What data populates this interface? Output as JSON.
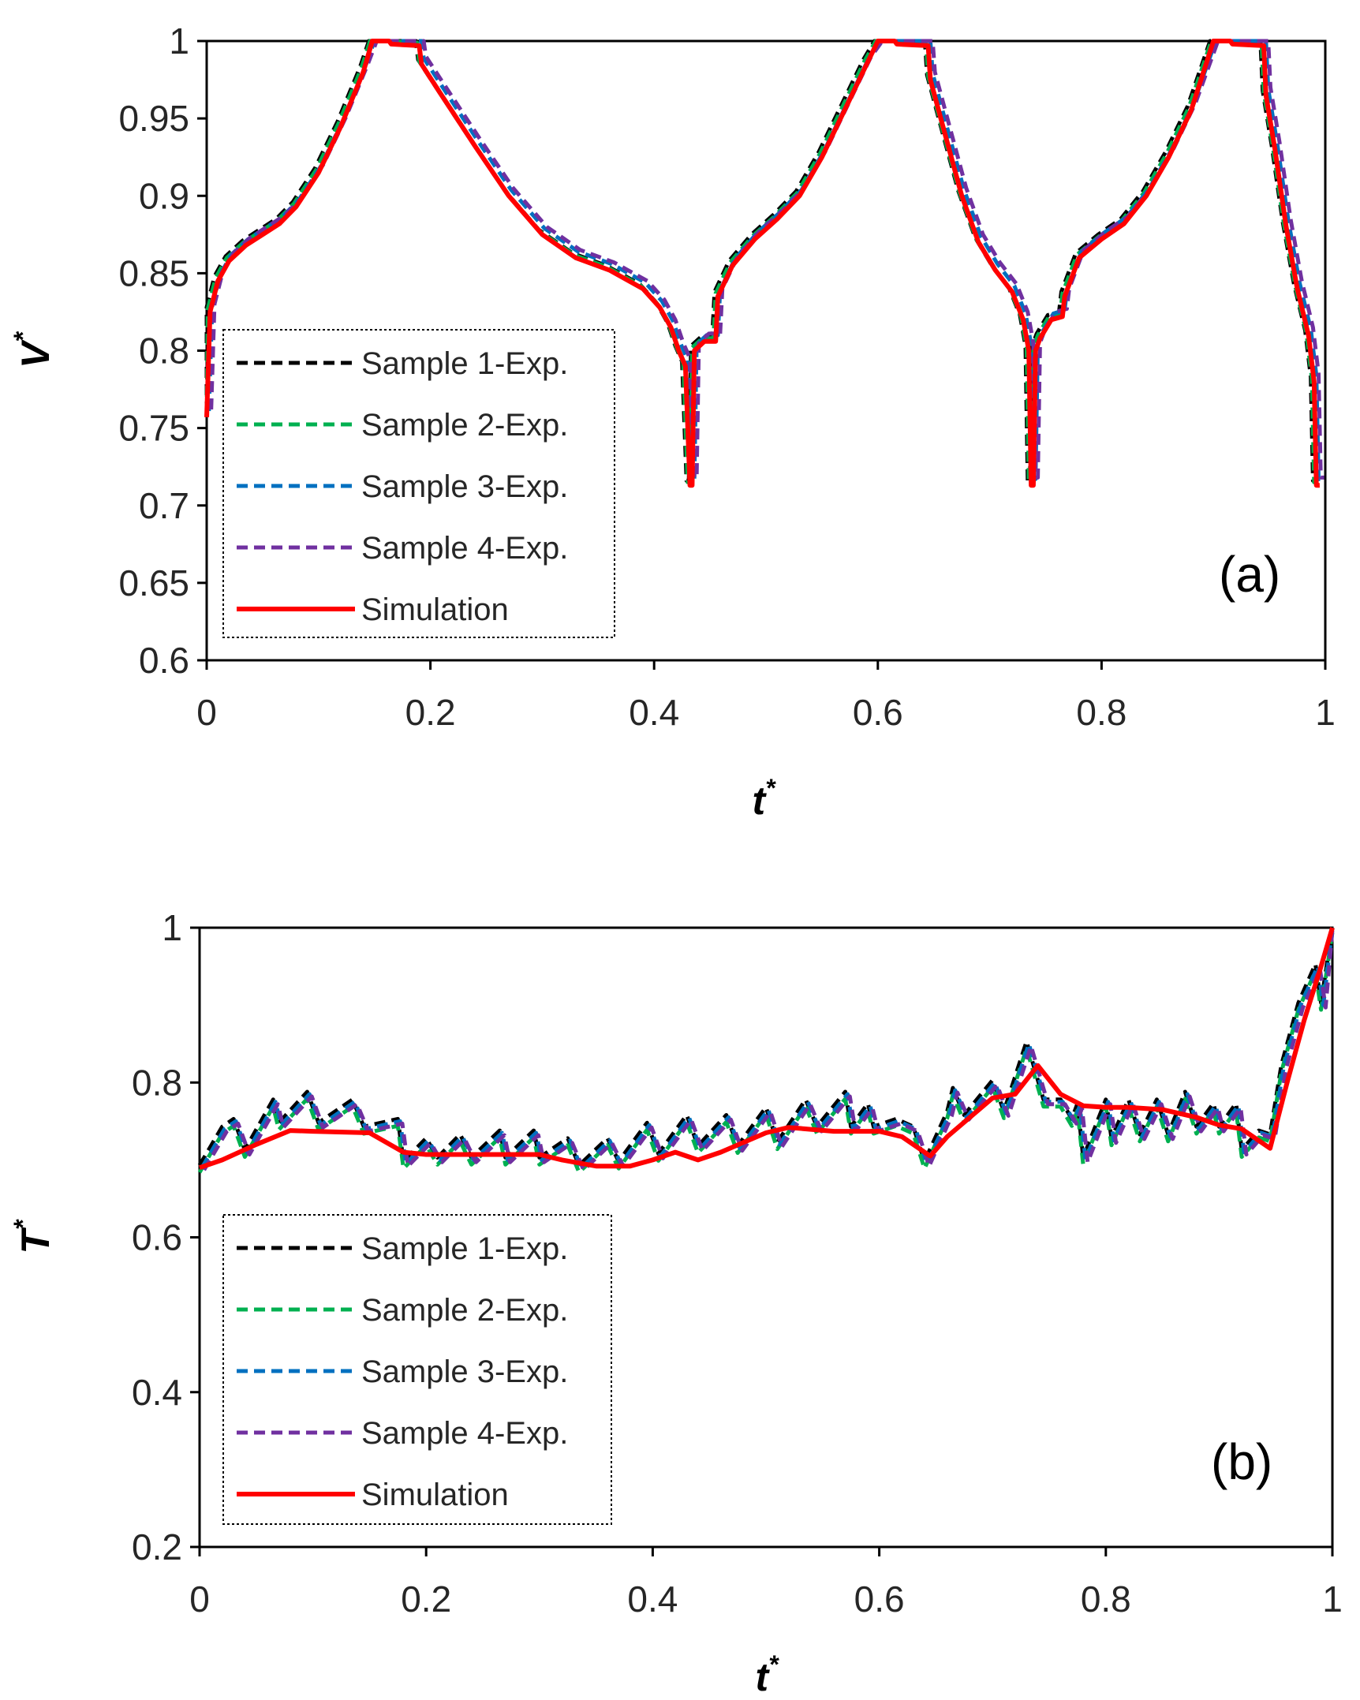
{
  "colors": {
    "sample1": "#000000",
    "sample2": "#00b050",
    "sample3": "#0070c0",
    "sample4": "#7030a0",
    "simulation": "#ff0000",
    "frame": "#000000"
  },
  "legend": {
    "entries": [
      {
        "label": "Sample 1-Exp.",
        "style": "dashed",
        "color": "#000000"
      },
      {
        "label": "Sample 2-Exp.",
        "style": "dashed",
        "color": "#00b050"
      },
      {
        "label": "Sample 3-Exp.",
        "style": "dashed",
        "color": "#0070c0"
      },
      {
        "label": "Sample 4-Exp.",
        "style": "dashed",
        "color": "#7030a0"
      },
      {
        "label": "Simulation",
        "style": "solid",
        "color": "#ff0000"
      }
    ]
  },
  "chart_data": [
    {
      "type": "line",
      "panel_label": "(a)",
      "xlabel": "t",
      "xlabel_sup": "*",
      "ylabel": "V",
      "ylabel_sup": "*",
      "xlim": [
        0,
        1
      ],
      "ylim": [
        0.6,
        1
      ],
      "xticks": [
        0,
        0.2,
        0.4,
        0.6,
        0.8,
        1
      ],
      "xtick_labels": [
        "0",
        "0.2",
        "0.4",
        "0.6",
        "0.8",
        "1"
      ],
      "yticks": [
        0.6,
        0.65,
        0.7,
        0.75,
        0.8,
        0.85,
        0.9,
        0.95,
        1
      ],
      "ytick_labels": [
        "0.6",
        "0.65",
        "0.7",
        "0.75",
        "0.8",
        "0.85",
        "0.9",
        "0.95",
        "1"
      ],
      "legend_position": "bottom-left",
      "series": [
        {
          "name": "Sample 1-Exp.",
          "style": "dashed",
          "color": "#000000",
          "dx": -0.003,
          "dy": 0.003
        },
        {
          "name": "Sample 2-Exp.",
          "style": "dashed",
          "color": "#00b050",
          "dx": -0.002,
          "dy": 0.002
        },
        {
          "name": "Sample 3-Exp.",
          "style": "dashed",
          "color": "#0070c0",
          "dx": 0.002,
          "dy": 0.004
        },
        {
          "name": "Sample 4-Exp.",
          "style": "dashed",
          "color": "#7030a0",
          "dx": 0.004,
          "dy": 0.005
        },
        {
          "name": "Simulation",
          "style": "solid",
          "color": "#ff0000",
          "dx": 0,
          "dy": 0
        }
      ],
      "base_curve": [
        [
          0.0,
          0.757
        ],
        [
          0.003,
          0.825
        ],
        [
          0.01,
          0.845
        ],
        [
          0.02,
          0.858
        ],
        [
          0.035,
          0.868
        ],
        [
          0.05,
          0.875
        ],
        [
          0.065,
          0.882
        ],
        [
          0.08,
          0.893
        ],
        [
          0.1,
          0.915
        ],
        [
          0.12,
          0.945
        ],
        [
          0.14,
          0.98
        ],
        [
          0.148,
          1.0
        ],
        [
          0.163,
          1.0
        ],
        [
          0.165,
          0.998
        ],
        [
          0.19,
          0.997
        ],
        [
          0.192,
          0.985
        ],
        [
          0.21,
          0.965
        ],
        [
          0.24,
          0.932
        ],
        [
          0.27,
          0.9
        ],
        [
          0.3,
          0.875
        ],
        [
          0.33,
          0.86
        ],
        [
          0.36,
          0.852
        ],
        [
          0.39,
          0.84
        ],
        [
          0.405,
          0.828
        ],
        [
          0.415,
          0.815
        ],
        [
          0.422,
          0.8
        ],
        [
          0.428,
          0.79
        ],
        [
          0.432,
          0.713
        ],
        [
          0.434,
          0.713
        ],
        [
          0.436,
          0.8
        ],
        [
          0.445,
          0.806
        ],
        [
          0.455,
          0.806
        ],
        [
          0.457,
          0.835
        ],
        [
          0.47,
          0.855
        ],
        [
          0.49,
          0.872
        ],
        [
          0.51,
          0.885
        ],
        [
          0.53,
          0.9
        ],
        [
          0.55,
          0.925
        ],
        [
          0.57,
          0.955
        ],
        [
          0.59,
          0.985
        ],
        [
          0.6,
          1.0
        ],
        [
          0.615,
          1.0
        ],
        [
          0.617,
          0.998
        ],
        [
          0.645,
          0.997
        ],
        [
          0.647,
          0.975
        ],
        [
          0.66,
          0.94
        ],
        [
          0.675,
          0.9
        ],
        [
          0.69,
          0.87
        ],
        [
          0.705,
          0.852
        ],
        [
          0.72,
          0.838
        ],
        [
          0.73,
          0.82
        ],
        [
          0.735,
          0.8
        ],
        [
          0.737,
          0.713
        ],
        [
          0.739,
          0.713
        ],
        [
          0.741,
          0.8
        ],
        [
          0.745,
          0.808
        ],
        [
          0.755,
          0.82
        ],
        [
          0.765,
          0.822
        ],
        [
          0.767,
          0.835
        ],
        [
          0.78,
          0.86
        ],
        [
          0.8,
          0.872
        ],
        [
          0.82,
          0.882
        ],
        [
          0.84,
          0.9
        ],
        [
          0.86,
          0.925
        ],
        [
          0.88,
          0.955
        ],
        [
          0.9,
          1.0
        ],
        [
          0.915,
          1.0
        ],
        [
          0.917,
          0.998
        ],
        [
          0.945,
          0.997
        ],
        [
          0.947,
          0.965
        ],
        [
          0.955,
          0.93
        ],
        [
          0.965,
          0.88
        ],
        [
          0.975,
          0.84
        ],
        [
          0.985,
          0.81
        ],
        [
          0.99,
          0.78
        ],
        [
          0.992,
          0.713
        ],
        [
          0.995,
          0.713
        ]
      ]
    },
    {
      "type": "line",
      "panel_label": "(b)",
      "xlabel": "t",
      "xlabel_sup": "*",
      "ylabel": "T",
      "ylabel_sup": "*",
      "xlim": [
        0,
        1
      ],
      "ylim": [
        0.2,
        1
      ],
      "xticks": [
        0,
        0.2,
        0.4,
        0.6,
        0.8,
        1
      ],
      "xtick_labels": [
        "0",
        "0.2",
        "0.4",
        "0.6",
        "0.8",
        "1"
      ],
      "yticks": [
        0.2,
        0.4,
        0.6,
        0.8,
        1
      ],
      "ytick_labels": [
        "0.2",
        "0.4",
        "0.6",
        "0.8",
        "1"
      ],
      "legend_position": "bottom-left",
      "experimental_curve": [
        [
          0.0,
          0.69
        ],
        [
          0.02,
          0.74
        ],
        [
          0.03,
          0.75
        ],
        [
          0.04,
          0.71
        ],
        [
          0.065,
          0.775
        ],
        [
          0.07,
          0.745
        ],
        [
          0.095,
          0.785
        ],
        [
          0.105,
          0.745
        ],
        [
          0.135,
          0.775
        ],
        [
          0.145,
          0.74
        ],
        [
          0.175,
          0.75
        ],
        [
          0.18,
          0.695
        ],
        [
          0.2,
          0.725
        ],
        [
          0.21,
          0.7
        ],
        [
          0.23,
          0.73
        ],
        [
          0.24,
          0.7
        ],
        [
          0.265,
          0.735
        ],
        [
          0.27,
          0.7
        ],
        [
          0.295,
          0.735
        ],
        [
          0.3,
          0.7
        ],
        [
          0.325,
          0.725
        ],
        [
          0.335,
          0.69
        ],
        [
          0.36,
          0.725
        ],
        [
          0.37,
          0.695
        ],
        [
          0.395,
          0.745
        ],
        [
          0.405,
          0.705
        ],
        [
          0.43,
          0.755
        ],
        [
          0.44,
          0.715
        ],
        [
          0.465,
          0.755
        ],
        [
          0.475,
          0.715
        ],
        [
          0.5,
          0.765
        ],
        [
          0.51,
          0.72
        ],
        [
          0.535,
          0.775
        ],
        [
          0.545,
          0.74
        ],
        [
          0.57,
          0.785
        ],
        [
          0.575,
          0.74
        ],
        [
          0.59,
          0.77
        ],
        [
          0.595,
          0.74
        ],
        [
          0.615,
          0.75
        ],
        [
          0.63,
          0.74
        ],
        [
          0.64,
          0.695
        ],
        [
          0.66,
          0.76
        ],
        [
          0.665,
          0.79
        ],
        [
          0.675,
          0.755
        ],
        [
          0.7,
          0.8
        ],
        [
          0.71,
          0.76
        ],
        [
          0.73,
          0.85
        ],
        [
          0.745,
          0.775
        ],
        [
          0.76,
          0.775
        ],
        [
          0.77,
          0.75
        ],
        [
          0.775,
          0.77
        ],
        [
          0.78,
          0.7
        ],
        [
          0.8,
          0.775
        ],
        [
          0.805,
          0.725
        ],
        [
          0.82,
          0.775
        ],
        [
          0.83,
          0.73
        ],
        [
          0.845,
          0.775
        ],
        [
          0.855,
          0.73
        ],
        [
          0.87,
          0.785
        ],
        [
          0.88,
          0.74
        ],
        [
          0.895,
          0.77
        ],
        [
          0.9,
          0.74
        ],
        [
          0.915,
          0.77
        ],
        [
          0.92,
          0.71
        ],
        [
          0.935,
          0.735
        ],
        [
          0.945,
          0.73
        ],
        [
          0.955,
          0.82
        ],
        [
          0.97,
          0.9
        ],
        [
          0.985,
          0.95
        ],
        [
          0.99,
          0.9
        ],
        [
          1.0,
          1.0
        ]
      ],
      "series": [
        {
          "name": "Sample 1-Exp.",
          "style": "dashed",
          "color": "#000000",
          "dx": 0,
          "dy": 0.003
        },
        {
          "name": "Sample 2-Exp.",
          "style": "dashed",
          "color": "#00b050",
          "dx": 0,
          "dy": -0.006
        },
        {
          "name": "Sample 3-Exp.",
          "style": "dashed",
          "color": "#0070c0",
          "dx": 0.002,
          "dy": 0.0
        },
        {
          "name": "Sample 4-Exp.",
          "style": "dashed",
          "color": "#7030a0",
          "dx": 0.004,
          "dy": -0.003
        },
        {
          "name": "Simulation",
          "style": "solid",
          "color": "#ff0000",
          "points": [
            [
              0.0,
              0.69
            ],
            [
              0.02,
              0.7
            ],
            [
              0.05,
              0.72
            ],
            [
              0.08,
              0.738
            ],
            [
              0.1,
              0.737
            ],
            [
              0.15,
              0.735
            ],
            [
              0.18,
              0.71
            ],
            [
              0.2,
              0.707
            ],
            [
              0.25,
              0.707
            ],
            [
              0.3,
              0.707
            ],
            [
              0.32,
              0.7
            ],
            [
              0.35,
              0.692
            ],
            [
              0.38,
              0.692
            ],
            [
              0.4,
              0.7
            ],
            [
              0.42,
              0.71
            ],
            [
              0.44,
              0.7
            ],
            [
              0.46,
              0.71
            ],
            [
              0.5,
              0.735
            ],
            [
              0.52,
              0.742
            ],
            [
              0.56,
              0.737
            ],
            [
              0.6,
              0.737
            ],
            [
              0.62,
              0.73
            ],
            [
              0.645,
              0.705
            ],
            [
              0.66,
              0.73
            ],
            [
              0.7,
              0.78
            ],
            [
              0.72,
              0.785
            ],
            [
              0.74,
              0.822
            ],
            [
              0.76,
              0.785
            ],
            [
              0.78,
              0.77
            ],
            [
              0.8,
              0.768
            ],
            [
              0.82,
              0.768
            ],
            [
              0.85,
              0.765
            ],
            [
              0.88,
              0.755
            ],
            [
              0.9,
              0.745
            ],
            [
              0.92,
              0.74
            ],
            [
              0.945,
              0.715
            ],
            [
              0.96,
              0.8
            ],
            [
              0.975,
              0.88
            ],
            [
              0.99,
              0.95
            ],
            [
              1.0,
              1.0
            ]
          ]
        }
      ]
    }
  ]
}
